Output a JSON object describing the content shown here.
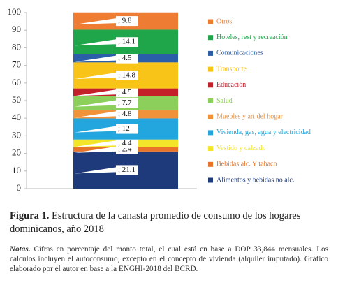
{
  "chart_data": {
    "type": "stacked-bar",
    "categories": [
      null
    ],
    "series": [
      {
        "name": "Alimentos y bebidas no alc.",
        "color": "#1f3a7a",
        "values": [
          21.1
        ],
        "value_labels": [
          "; 21.1"
        ]
      },
      {
        "name": "Bebidas alc. Y tabaco",
        "color": "#e8742a",
        "values": [
          2.4
        ],
        "value_labels": [
          "; 2.4"
        ]
      },
      {
        "name": "Vestido y calzado",
        "color": "#f2e52a",
        "values": [
          4.4
        ],
        "value_labels": [
          "; 4.4"
        ]
      },
      {
        "name": "Vivienda, gas, agua y electricidad",
        "color": "#22a6dd",
        "values": [
          12
        ],
        "value_labels": [
          "; 12"
        ]
      },
      {
        "name": "Muebles y art del hogar",
        "color": "#f0923a",
        "values": [
          4.8
        ],
        "value_labels": [
          "; 4.8"
        ]
      },
      {
        "name": "Salud",
        "color": "#8ccf5a",
        "values": [
          7.7
        ],
        "value_labels": [
          "; 7.7"
        ]
      },
      {
        "name": "Educación",
        "color": "#c4202a",
        "values": [
          4.5
        ],
        "value_labels": [
          "; 4.5"
        ]
      },
      {
        "name": "Transporte",
        "color": "#f8c418",
        "values": [
          14.8
        ],
        "value_labels": [
          "; 14.8"
        ]
      },
      {
        "name": "Comunicaciones",
        "color": "#2a5ea8",
        "values": [
          4.5
        ],
        "value_labels": [
          "; 4.5"
        ]
      },
      {
        "name": "Hoteles, rest y recreación",
        "color": "#1fa64a",
        "values": [
          14.1
        ],
        "value_labels": [
          "; 14.1"
        ]
      },
      {
        "name": "Otros",
        "color": "#ee7d33",
        "values": [
          9.8
        ],
        "value_labels": [
          "; 9.8"
        ]
      }
    ],
    "ylim": [
      0,
      100
    ],
    "yticks": [
      0,
      10,
      20,
      30,
      40,
      50,
      60,
      70,
      80,
      90,
      100
    ],
    "legend": "right"
  },
  "figure_label": "Figura 1.",
  "caption": "Estructura de la canasta promedio de consumo de los hogares dominicanos, año 2018",
  "notes_label": "Notas.",
  "notes": "Cifras en porcentaje del monto total, el cual está en base a DOP 33,844 mensuales. Los cálculos incluyen el autoconsumo, excepto en el concepto de vivienda (alquiler imputado). Gráfico elaborado por el autor en base a la ENGHI-2018 del BCRD."
}
